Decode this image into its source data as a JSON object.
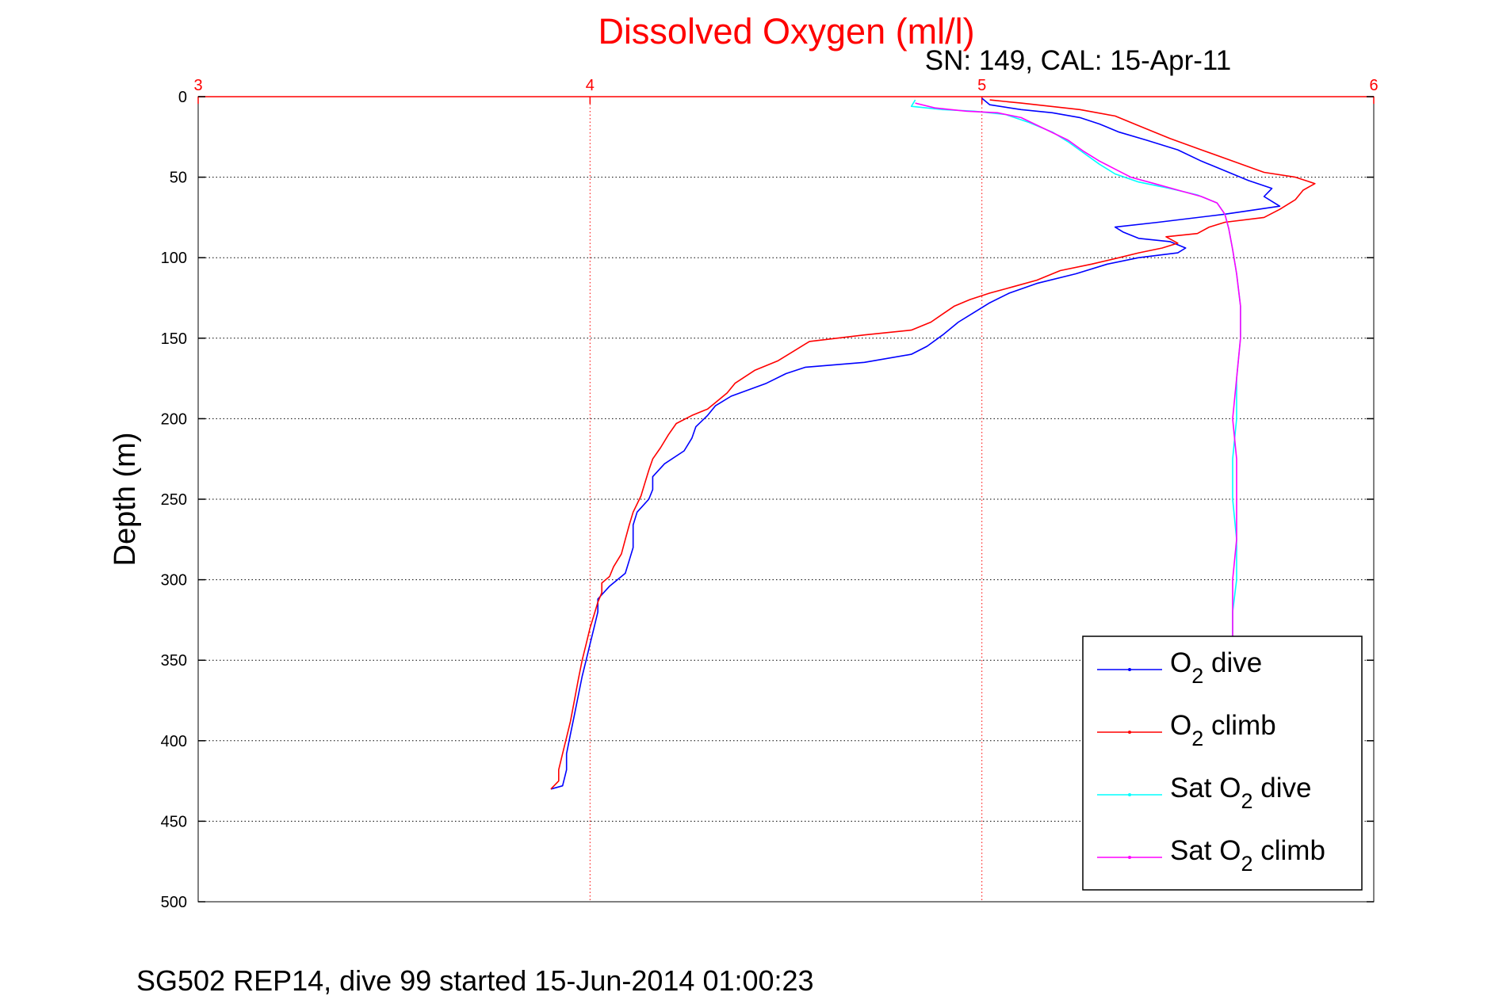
{
  "chart_data": {
    "type": "line",
    "title": "Dissolved Oxygen (ml/l)",
    "subtitle": "SN: 149, CAL: 15-Apr-11",
    "xlabel": "",
    "ylabel": "Depth (m)",
    "footer": "SG502 REP14, dive 99 started 15-Jun-2014 01:00:23",
    "xlim": [
      3,
      6
    ],
    "ylim": [
      0,
      500
    ],
    "y_reversed": true,
    "x_axis_position": "top",
    "grid": true,
    "legend_position": "bottom-right",
    "x_ticks": [
      "3",
      "4",
      "5",
      "6"
    ],
    "y_ticks": [
      "0",
      "50",
      "100",
      "150",
      "200",
      "250",
      "300",
      "350",
      "400",
      "450",
      "500"
    ],
    "series": [
      {
        "name": "O₂ dive",
        "legend_main": "O",
        "legend_sub": "2",
        "legend_rest": " dive",
        "color": "#0000ff",
        "points": [
          [
            5.0,
            1
          ],
          [
            5.02,
            5
          ],
          [
            5.1,
            8
          ],
          [
            5.18,
            10
          ],
          [
            5.25,
            13
          ],
          [
            5.3,
            17
          ],
          [
            5.35,
            22
          ],
          [
            5.42,
            27
          ],
          [
            5.5,
            33
          ],
          [
            5.56,
            40
          ],
          [
            5.62,
            46
          ],
          [
            5.68,
            52
          ],
          [
            5.74,
            57
          ],
          [
            5.72,
            62
          ],
          [
            5.76,
            68
          ],
          [
            5.62,
            73
          ],
          [
            5.45,
            78
          ],
          [
            5.34,
            81
          ],
          [
            5.36,
            84
          ],
          [
            5.4,
            88
          ],
          [
            5.48,
            90
          ],
          [
            5.52,
            94
          ],
          [
            5.5,
            97
          ],
          [
            5.4,
            100
          ],
          [
            5.32,
            104
          ],
          [
            5.24,
            110
          ],
          [
            5.14,
            116
          ],
          [
            5.07,
            122
          ],
          [
            5.02,
            128
          ],
          [
            4.98,
            134
          ],
          [
            4.94,
            140
          ],
          [
            4.9,
            148
          ],
          [
            4.86,
            155
          ],
          [
            4.82,
            160
          ],
          [
            4.7,
            165
          ],
          [
            4.55,
            168
          ],
          [
            4.5,
            172
          ],
          [
            4.45,
            178
          ],
          [
            4.36,
            186
          ],
          [
            4.32,
            192
          ],
          [
            4.3,
            198
          ],
          [
            4.27,
            205
          ],
          [
            4.26,
            212
          ],
          [
            4.24,
            220
          ],
          [
            4.19,
            228
          ],
          [
            4.16,
            236
          ],
          [
            4.16,
            244
          ],
          [
            4.15,
            250
          ],
          [
            4.12,
            258
          ],
          [
            4.11,
            266
          ],
          [
            4.11,
            274
          ],
          [
            4.11,
            280
          ],
          [
            4.1,
            288
          ],
          [
            4.09,
            296
          ],
          [
            4.05,
            304
          ],
          [
            4.02,
            312
          ],
          [
            4.02,
            320
          ],
          [
            4.01,
            330
          ],
          [
            4.0,
            340
          ],
          [
            3.99,
            350
          ],
          [
            3.98,
            360
          ],
          [
            3.97,
            372
          ],
          [
            3.96,
            384
          ],
          [
            3.95,
            396
          ],
          [
            3.94,
            408
          ],
          [
            3.94,
            418
          ],
          [
            3.93,
            428
          ],
          [
            3.9,
            430
          ]
        ]
      },
      {
        "name": "O₂ climb",
        "legend_main": "O",
        "legend_sub": "2",
        "legend_rest": " climb",
        "color": "#ff0000",
        "points": [
          [
            3.9,
            430
          ],
          [
            3.92,
            425
          ],
          [
            3.92,
            418
          ],
          [
            3.93,
            408
          ],
          [
            3.94,
            398
          ],
          [
            3.95,
            388
          ],
          [
            3.96,
            375
          ],
          [
            3.97,
            362
          ],
          [
            3.98,
            350
          ],
          [
            3.99,
            340
          ],
          [
            4.0,
            330
          ],
          [
            4.01,
            322
          ],
          [
            4.02,
            314
          ],
          [
            4.03,
            308
          ],
          [
            4.03,
            302
          ],
          [
            4.05,
            298
          ],
          [
            4.06,
            292
          ],
          [
            4.08,
            284
          ],
          [
            4.09,
            275
          ],
          [
            4.1,
            266
          ],
          [
            4.11,
            258
          ],
          [
            4.13,
            248
          ],
          [
            4.14,
            240
          ],
          [
            4.15,
            232
          ],
          [
            4.16,
            225
          ],
          [
            4.18,
            218
          ],
          [
            4.2,
            210
          ],
          [
            4.22,
            203
          ],
          [
            4.26,
            198
          ],
          [
            4.3,
            194
          ],
          [
            4.32,
            190
          ],
          [
            4.35,
            184
          ],
          [
            4.37,
            178
          ],
          [
            4.42,
            170
          ],
          [
            4.48,
            164
          ],
          [
            4.52,
            158
          ],
          [
            4.56,
            152
          ],
          [
            4.7,
            148
          ],
          [
            4.82,
            145
          ],
          [
            4.87,
            140
          ],
          [
            4.9,
            135
          ],
          [
            4.93,
            130
          ],
          [
            4.97,
            126
          ],
          [
            5.02,
            122
          ],
          [
            5.08,
            118
          ],
          [
            5.14,
            114
          ],
          [
            5.2,
            108
          ],
          [
            5.28,
            104
          ],
          [
            5.35,
            100
          ],
          [
            5.4,
            97
          ],
          [
            5.46,
            94
          ],
          [
            5.5,
            91
          ],
          [
            5.47,
            87
          ],
          [
            5.55,
            85
          ],
          [
            5.58,
            81
          ],
          [
            5.62,
            78
          ],
          [
            5.72,
            75
          ],
          [
            5.76,
            70
          ],
          [
            5.8,
            64
          ],
          [
            5.82,
            58
          ],
          [
            5.85,
            54
          ],
          [
            5.8,
            50
          ],
          [
            5.72,
            47
          ],
          [
            5.64,
            40
          ],
          [
            5.56,
            33
          ],
          [
            5.48,
            26
          ],
          [
            5.4,
            18
          ],
          [
            5.34,
            12
          ],
          [
            5.25,
            8
          ],
          [
            5.1,
            4
          ],
          [
            5.02,
            2
          ]
        ]
      },
      {
        "name": "Sat O₂ dive",
        "legend_main": "Sat O",
        "legend_sub": "2",
        "legend_rest": " dive",
        "color": "#00ffff",
        "points": [
          [
            4.83,
            2
          ],
          [
            4.82,
            6
          ],
          [
            4.9,
            8
          ],
          [
            4.98,
            9
          ],
          [
            5.06,
            11
          ],
          [
            5.12,
            16
          ],
          [
            5.18,
            22
          ],
          [
            5.22,
            28
          ],
          [
            5.26,
            35
          ],
          [
            5.3,
            42
          ],
          [
            5.34,
            48
          ],
          [
            5.4,
            53
          ],
          [
            5.48,
            57
          ],
          [
            5.55,
            61
          ],
          [
            5.6,
            66
          ],
          [
            5.62,
            73
          ],
          [
            5.63,
            82
          ],
          [
            5.64,
            95
          ],
          [
            5.65,
            110
          ],
          [
            5.66,
            130
          ],
          [
            5.66,
            150
          ],
          [
            5.65,
            175
          ],
          [
            5.65,
            200
          ],
          [
            5.64,
            225
          ],
          [
            5.64,
            250
          ],
          [
            5.65,
            275
          ],
          [
            5.65,
            300
          ],
          [
            5.64,
            320
          ],
          [
            5.64,
            335
          ]
        ]
      },
      {
        "name": "Sat O₂ climb",
        "legend_main": "Sat O",
        "legend_sub": "2",
        "legend_rest": " climb",
        "color": "#ff00ff",
        "points": [
          [
            5.64,
            335
          ],
          [
            5.64,
            320
          ],
          [
            5.64,
            300
          ],
          [
            5.65,
            275
          ],
          [
            5.65,
            250
          ],
          [
            5.65,
            225
          ],
          [
            5.64,
            200
          ],
          [
            5.65,
            175
          ],
          [
            5.66,
            150
          ],
          [
            5.66,
            130
          ],
          [
            5.65,
            110
          ],
          [
            5.64,
            95
          ],
          [
            5.63,
            82
          ],
          [
            5.62,
            73
          ],
          [
            5.6,
            66
          ],
          [
            5.56,
            62
          ],
          [
            5.5,
            58
          ],
          [
            5.44,
            54
          ],
          [
            5.38,
            50
          ],
          [
            5.34,
            45
          ],
          [
            5.3,
            40
          ],
          [
            5.26,
            34
          ],
          [
            5.22,
            27
          ],
          [
            5.16,
            20
          ],
          [
            5.1,
            13
          ],
          [
            5.04,
            10
          ],
          [
            4.96,
            9
          ],
          [
            4.88,
            7
          ],
          [
            4.83,
            4
          ]
        ]
      }
    ]
  }
}
